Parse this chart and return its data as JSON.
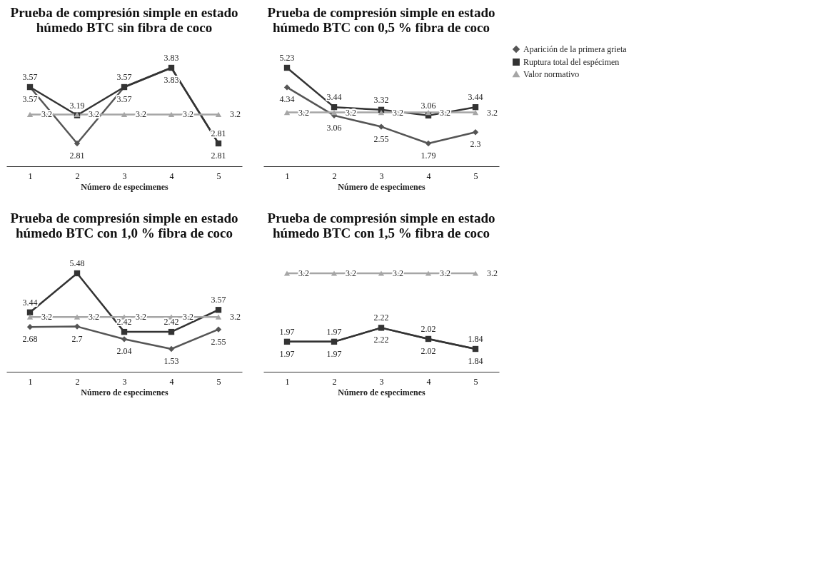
{
  "chart_data": [
    {
      "type": "line",
      "title": "Prueba de compresión simple en estado húmedo BTC sin fibra de coco",
      "xlabel": "Número de especimenes",
      "categories": [
        "1",
        "2",
        "3",
        "4",
        "5"
      ],
      "data_labels": true,
      "legend": "right",
      "grid": false,
      "series": [
        {
          "name": "Aparición de la primera grieta",
          "color": "#555555",
          "marker": "diamond",
          "values": [
            3.57,
            2.81,
            3.57,
            3.83,
            2.81
          ]
        },
        {
          "name": "Ruptura total del espécimen",
          "color": "#333333",
          "marker": "square",
          "values": [
            3.57,
            3.19,
            3.57,
            3.83,
            2.81
          ]
        },
        {
          "name": "Valor normativo",
          "color": "#a6a6a6",
          "marker": "triangle",
          "values": [
            3.2,
            3.2,
            3.2,
            3.2,
            3.2
          ]
        }
      ]
    },
    {
      "type": "line",
      "title": "Prueba de compresión simple en estado húmedo BTC con 0,5 % fibra de coco",
      "xlabel": "Número de especimenes",
      "categories": [
        "1",
        "2",
        "3",
        "4",
        "5"
      ],
      "data_labels": true,
      "legend": "right",
      "grid": false,
      "series": [
        {
          "name": "Aparición de la primera grieta",
          "color": "#555555",
          "marker": "diamond",
          "values": [
            4.34,
            3.06,
            2.55,
            1.79,
            2.3
          ]
        },
        {
          "name": "Ruptura total del espécimen",
          "color": "#333333",
          "marker": "square",
          "values": [
            5.23,
            3.44,
            3.32,
            3.06,
            3.44
          ]
        },
        {
          "name": "Valor normativo",
          "color": "#a6a6a6",
          "marker": "triangle",
          "values": [
            3.2,
            3.2,
            3.2,
            3.2,
            3.2
          ]
        }
      ]
    },
    {
      "type": "line",
      "title": "Prueba de compresión simple en estado húmedo BTC con 1,0 % fibra de coco",
      "xlabel": "Número de especimenes",
      "categories": [
        "1",
        "2",
        "3",
        "4",
        "5"
      ],
      "data_labels": true,
      "legend": "right",
      "grid": false,
      "series": [
        {
          "name": "Aparición de la primera grieta",
          "color": "#555555",
          "marker": "diamond",
          "values": [
            2.68,
            2.7,
            2.04,
            1.53,
            2.55
          ]
        },
        {
          "name": "Ruptura total del espécimen",
          "color": "#333333",
          "marker": "square",
          "values": [
            3.44,
            5.48,
            2.42,
            2.42,
            3.57
          ]
        },
        {
          "name": "Valor normativo",
          "color": "#a6a6a6",
          "marker": "triangle",
          "values": [
            3.2,
            3.2,
            3.2,
            3.2,
            3.2
          ]
        }
      ]
    },
    {
      "type": "line",
      "title": "Prueba de compresión simple en estado húmedo BTC con 1,5 % fibra de coco",
      "xlabel": "Número de especimenes",
      "categories": [
        "1",
        "2",
        "3",
        "4",
        "5"
      ],
      "data_labels": true,
      "legend": "right",
      "grid": false,
      "series": [
        {
          "name": "Aparición de la primera grieta",
          "color": "#555555",
          "marker": "diamond",
          "values": [
            1.97,
            1.97,
            2.22,
            2.02,
            1.84
          ]
        },
        {
          "name": "Ruptura total del espécimen",
          "color": "#333333",
          "marker": "square",
          "values": [
            1.97,
            1.97,
            2.22,
            2.02,
            1.84
          ]
        },
        {
          "name": "Valor normativo",
          "color": "#a6a6a6",
          "marker": "triangle",
          "values": [
            3.2,
            3.2,
            3.2,
            3.2,
            3.2
          ]
        }
      ]
    }
  ]
}
